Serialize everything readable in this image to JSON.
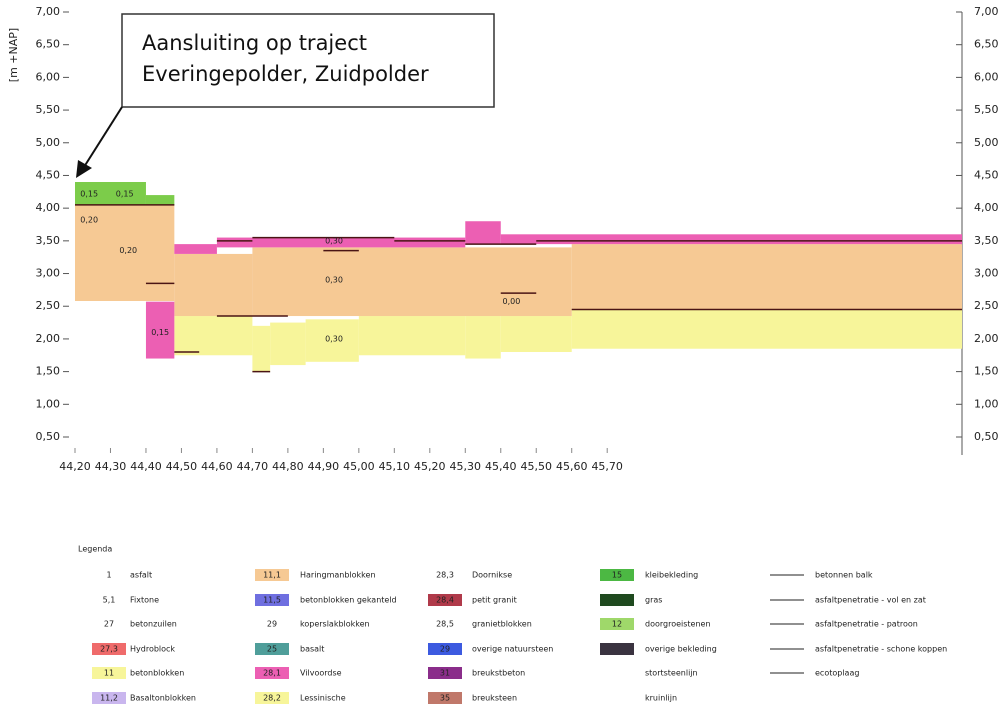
{
  "chart_data": {
    "type": "profile",
    "y_label": "[m +NAP]",
    "callout": [
      "Aansluiting op traject",
      "Everingepolder, Zuidpolder"
    ],
    "xlim": [
      44.2,
      46.7
    ],
    "ylim": [
      0.5,
      7.0
    ],
    "xticks": [
      {
        "value": 44.2,
        "label": "44,20"
      },
      {
        "value": 44.3,
        "label": "44,30"
      },
      {
        "value": 44.4,
        "label": "44,40"
      },
      {
        "value": 44.5,
        "label": "44,50"
      },
      {
        "value": 44.6,
        "label": "44,60"
      },
      {
        "value": 44.7,
        "label": "44,70"
      },
      {
        "value": 44.8,
        "label": "44,80"
      },
      {
        "value": 44.9,
        "label": "44,90"
      },
      {
        "value": 45.0,
        "label": "45,00"
      },
      {
        "value": 45.1,
        "label": "45,10"
      },
      {
        "value": 45.2,
        "label": "45,20"
      },
      {
        "value": 45.3,
        "label": "45,30"
      },
      {
        "value": 45.4,
        "label": "45,40"
      },
      {
        "value": 45.5,
        "label": "45,50"
      },
      {
        "value": 45.6,
        "label": "45,60"
      },
      {
        "value": 45.7,
        "label": "45,70"
      }
    ],
    "yticks": [
      {
        "value": 0.5,
        "label": "0,50"
      },
      {
        "value": 1.0,
        "label": "1,00"
      },
      {
        "value": 1.5,
        "label": "1,50"
      },
      {
        "value": 2.0,
        "label": "2,00"
      },
      {
        "value": 2.5,
        "label": "2,50"
      },
      {
        "value": 3.0,
        "label": "3,00"
      },
      {
        "value": 3.5,
        "label": "3,50"
      },
      {
        "value": 4.0,
        "label": "4,00"
      },
      {
        "value": 4.5,
        "label": "4,50"
      },
      {
        "value": 5.0,
        "label": "5,00"
      },
      {
        "value": 5.5,
        "label": "5,50"
      },
      {
        "value": 6.0,
        "label": "6,00"
      },
      {
        "value": 6.5,
        "label": "6,50"
      },
      {
        "value": 7.0,
        "label": "7,00"
      }
    ],
    "layers": [
      {
        "color": "#f7f59a",
        "segments": [
          [
            44.48,
            44.7,
            1.75,
            2.35
          ],
          [
            44.7,
            44.75,
            1.5,
            2.2
          ],
          [
            44.75,
            44.85,
            1.6,
            2.25
          ],
          [
            44.85,
            45.0,
            1.65,
            2.3
          ],
          [
            45.0,
            45.3,
            1.75,
            2.35
          ],
          [
            45.3,
            45.4,
            1.7,
            2.35
          ],
          [
            45.4,
            45.6,
            1.8,
            2.35
          ],
          [
            45.6,
            46.7,
            1.85,
            2.45
          ]
        ]
      },
      {
        "color": "#f6c994",
        "segments": [
          [
            44.2,
            44.48,
            2.58,
            4.05
          ],
          [
            44.48,
            44.7,
            2.35,
            3.3
          ],
          [
            44.7,
            45.6,
            2.35,
            3.4
          ],
          [
            45.6,
            46.7,
            2.45,
            3.45
          ]
        ]
      },
      {
        "color": "#ec5fb3",
        "segments": [
          [
            44.4,
            44.48,
            1.7,
            2.57
          ],
          [
            44.48,
            44.6,
            3.3,
            3.45
          ],
          [
            44.6,
            45.3,
            3.4,
            3.55
          ],
          [
            45.3,
            45.4,
            3.45,
            3.8
          ],
          [
            45.4,
            46.7,
            3.45,
            3.6
          ]
        ]
      },
      {
        "color": "#7ccc4a",
        "segments": [
          [
            44.2,
            44.4,
            4.05,
            4.4
          ],
          [
            44.4,
            44.48,
            4.05,
            4.2
          ]
        ]
      }
    ],
    "lines": [
      [
        44.2,
        44.48,
        4.05
      ],
      [
        44.4,
        44.48,
        2.85
      ],
      [
        44.6,
        44.7,
        3.5
      ],
      [
        44.7,
        45.1,
        3.55
      ],
      [
        45.1,
        45.3,
        3.5
      ],
      [
        45.3,
        45.5,
        3.45
      ],
      [
        45.5,
        46.7,
        3.5
      ],
      [
        44.6,
        44.8,
        2.35
      ],
      [
        45.4,
        45.5,
        2.7
      ],
      [
        44.48,
        44.55,
        1.8
      ],
      [
        44.7,
        44.75,
        1.5
      ],
      [
        44.9,
        45.0,
        3.35
      ],
      [
        45.6,
        46.7,
        2.45
      ]
    ],
    "annotations": [
      {
        "text": "0,15",
        "x": 44.24,
        "y": 4.22
      },
      {
        "text": "0,15",
        "x": 44.34,
        "y": 4.22
      },
      {
        "text": "0,20",
        "x": 44.24,
        "y": 3.82
      },
      {
        "text": "0,20",
        "x": 44.35,
        "y": 3.35
      },
      {
        "text": "0,15",
        "x": 44.44,
        "y": 2.1
      },
      {
        "text": "0,30",
        "x": 44.93,
        "y": 3.5
      },
      {
        "text": "0,30",
        "x": 44.93,
        "y": 2.9
      },
      {
        "text": "0,30",
        "x": 44.93,
        "y": 2.0
      },
      {
        "text": "0,00",
        "x": 45.43,
        "y": 2.57
      }
    ],
    "legend_title": "Legenda",
    "legend": [
      [
        {
          "code": "1",
          "label": "asfalt"
        },
        {
          "code": "5,1",
          "label": "Fixtone"
        },
        {
          "code": "27",
          "label": "betonzuilen"
        },
        {
          "code": "27,3",
          "label": "Hydroblock",
          "color": "#ef6b6b"
        },
        {
          "code": "11",
          "label": "betonblokken",
          "color": "#f7f59a"
        },
        {
          "code": "11,2",
          "label": "Basaltonblokken",
          "color": "#c9b6ee"
        }
      ],
      [
        {
          "code": "11,1",
          "label": "Haringmanblokken",
          "color": "#f6c994"
        },
        {
          "code": "11,5",
          "label": "betonblokken gekanteld",
          "color": "#6f6fe0"
        },
        {
          "code": "29",
          "label": "koperslakblokken"
        },
        {
          "code": "25",
          "label": "basalt",
          "color": "#4f9e9a"
        },
        {
          "code": "28,1",
          "label": "Vilvoordse",
          "color": "#ec5fb3"
        },
        {
          "code": "28,2",
          "label": "Lessinische",
          "color": "#f7f59a"
        }
      ],
      [
        {
          "code": "28,3",
          "label": "Doornikse"
        },
        {
          "code": "28,4",
          "label": "petit granit",
          "color": "#b03a4a"
        },
        {
          "code": "28,5",
          "label": "granietblokken"
        },
        {
          "code": "29",
          "label": "overige natuursteen",
          "color": "#3c5ae0"
        },
        {
          "code": "31",
          "label": "breukstbeton",
          "color": "#8a2d8a"
        },
        {
          "code": "35",
          "label": "breuksteen",
          "color": "#c0786a"
        }
      ],
      [
        {
          "code": "15",
          "label": "kleibekleding",
          "color": "#4cb843"
        },
        {
          "label": "gras",
          "color": "#1f4a1f"
        },
        {
          "code": "12",
          "label": "doorgroeistenen",
          "color": "#9fd86a"
        },
        {
          "label": "overige bekleding",
          "color": "#3a3340"
        },
        {
          "label": "stortsteenlijn"
        },
        {
          "label": "kruinlijn"
        }
      ],
      [
        {
          "label": "betonnen balk"
        },
        {
          "label": "asfaltpenetratie - vol en zat"
        },
        {
          "label": "asfaltpenetratie - patroon"
        },
        {
          "label": "asfaltpenetratie - schone koppen"
        },
        {
          "label": "ecotoplaag"
        }
      ]
    ]
  }
}
